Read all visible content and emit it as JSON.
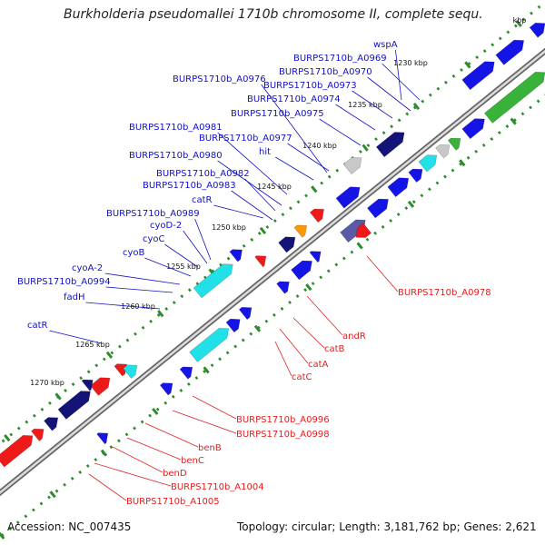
{
  "title": "Burkholderia pseudomallei 1710b chromosome II, complete sequ...",
  "footer": {
    "accession": "Accession: NC_007435",
    "topology": "Topology: circular; Length: 3,181,762 bp; Genes: 2,621"
  },
  "colors": {
    "backbone": "#9a9a9a",
    "tick": "#2e8b2e",
    "label_forward": "#1010c8",
    "label_reverse": "#e02020",
    "gene_blue": "#1414e6",
    "gene_red": "#ee1a1a",
    "gene_cyan": "#22e0e8",
    "gene_green": "#38b238",
    "gene_navy": "#141478",
    "gene_slate": "#5a5aa8",
    "gene_gray": "#c8c8c8",
    "gene_orange": "#ff9800",
    "gene_olive": "#7a9a3a"
  },
  "kbp_ticks": [
    "1230 kbp",
    "1235 kbp",
    "1240 kbp",
    "1245 kbp",
    "1250 kbp",
    "1255 kbp",
    "1260 kbp",
    "1265 kbp",
    "1270 kbp"
  ],
  "kbp_cut": "kbp",
  "labels_forward": [
    "wspA",
    "BURPS1710b_A0969",
    "BURPS1710b_A0970",
    "BURPS1710b_A0976",
    "BURPS1710b_A0973",
    "BURPS1710b_A0974",
    "BURPS1710b_A0975",
    "BURPS1710b_A0981",
    "BURPS1710b_A0977",
    "BURPS1710b_A0980",
    "hit",
    "BURPS1710b_A0982",
    "BURPS1710b_A0983",
    "catR",
    "BURPS1710b_A0989",
    "cyoD-2",
    "cyoC",
    "cyoB",
    "cyoA-2",
    "BURPS1710b_A0994",
    "fadH",
    "catR"
  ],
  "labels_reverse": [
    "BURPS1710b_A0978",
    "andR",
    "catB",
    "catA",
    "catC",
    "BURPS1710b_A0996",
    "BURPS1710b_A0998",
    "benB",
    "benC",
    "benD",
    "BURPS1710b_A1004",
    "BURPS1710b_A1005"
  ]
}
